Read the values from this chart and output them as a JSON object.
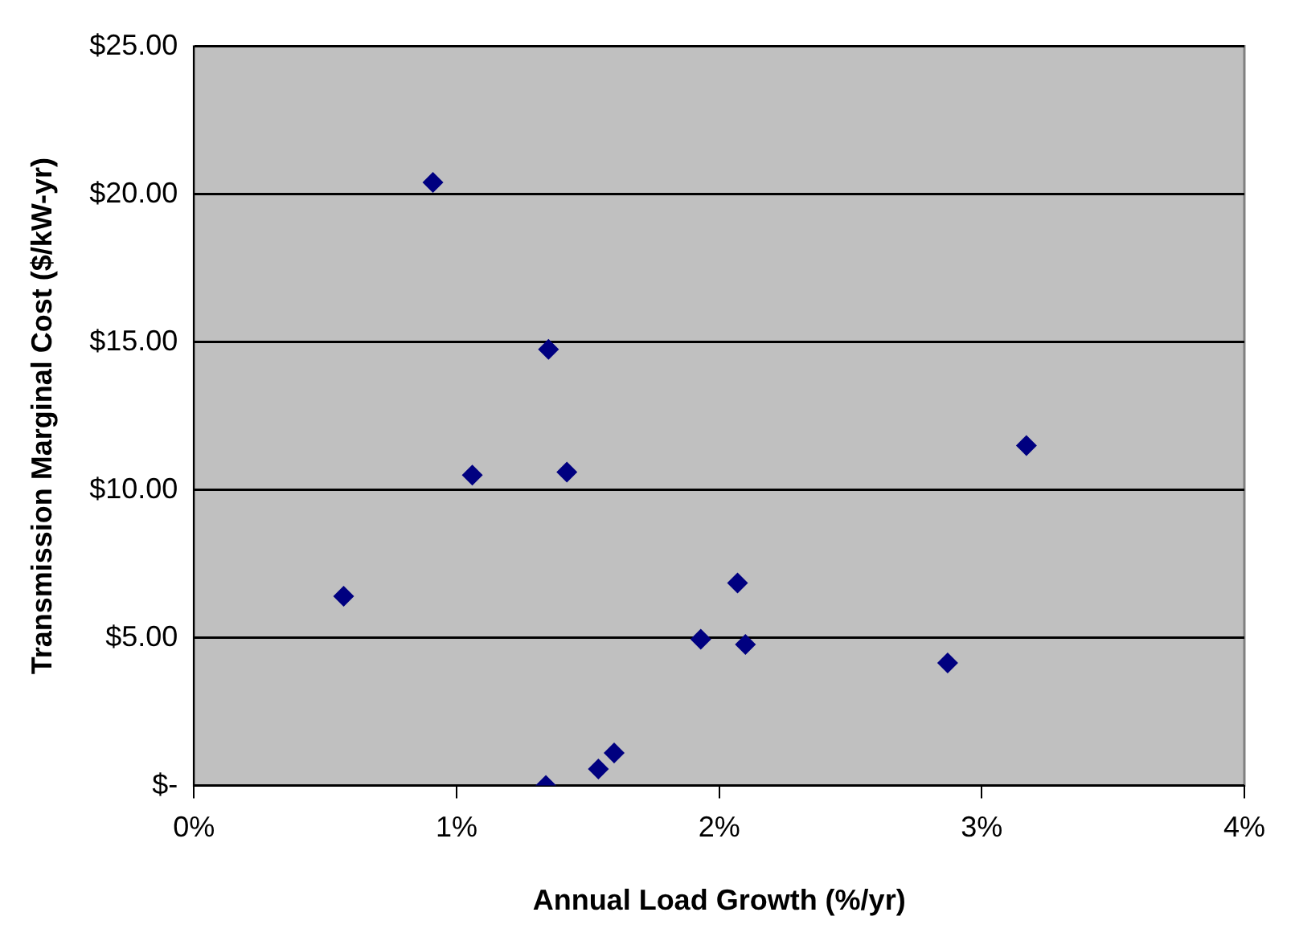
{
  "chart_data": {
    "type": "scatter",
    "xlabel": "Annual Load Growth (%/yr)",
    "ylabel": "Transmission Marginal Cost ($/kW-yr)",
    "x": [
      0.91,
      1.35,
      1.06,
      1.42,
      0.57,
      1.6,
      1.54,
      1.34,
      3.17,
      2.07,
      1.93,
      2.1,
      2.87
    ],
    "series": [
      {
        "color": "#000080",
        "values": [
          20.4,
          14.75,
          10.5,
          10.6,
          6.4,
          1.1,
          0.56,
          0,
          11.5,
          6.85,
          4.95,
          4.77,
          4.15
        ]
      }
    ],
    "xlim": [
      0,
      4
    ],
    "xticks": [
      {
        "value": 0,
        "label": "0%"
      },
      {
        "value": 1,
        "label": "1%"
      },
      {
        "value": 2,
        "label": "2%"
      },
      {
        "value": 3,
        "label": "3%"
      },
      {
        "value": 4,
        "label": "4%"
      }
    ],
    "ylim": [
      0,
      25
    ],
    "yticks": [
      {
        "value": 0,
        "label": "$-"
      },
      {
        "value": 5,
        "label": "$5.00"
      },
      {
        "value": 10,
        "label": "$10.00"
      },
      {
        "value": 15,
        "label": "$15.00"
      },
      {
        "value": 20,
        "label": "$20.00"
      },
      {
        "value": 25,
        "label": "$25.00"
      }
    ],
    "grid": "y",
    "legend": false,
    "marker": "diamond"
  }
}
